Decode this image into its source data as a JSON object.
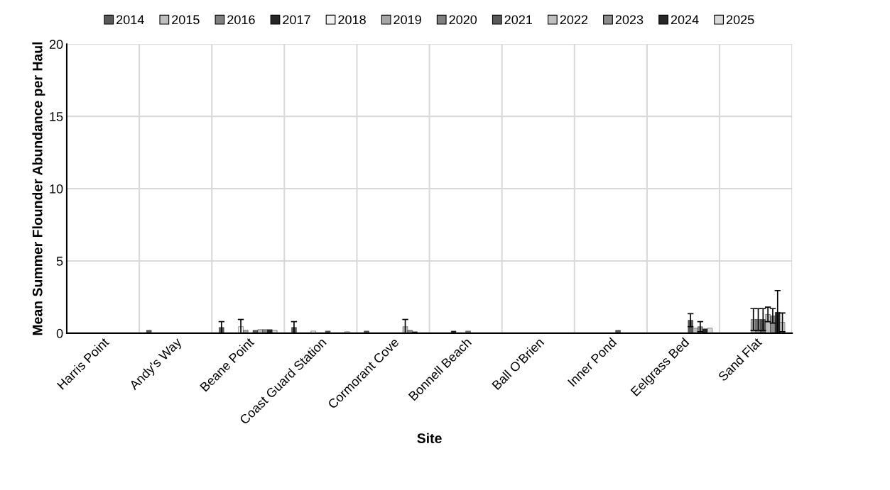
{
  "chart_data": {
    "type": "bar",
    "xlabel": "Site",
    "ylabel": "Mean Summer Flounder Abundance per Haul",
    "categories": [
      "Harris Point",
      "Andy's Way",
      "Beane Point",
      "Coast Guard Station",
      "Cormorant Cove",
      "Bonnell Beach",
      "Ball O'Brien",
      "Inner Pond",
      "Eelgrass Bed",
      "Sand Flat"
    ],
    "ylim": [
      0,
      20
    ],
    "yticks": [
      0,
      5,
      10,
      15,
      20
    ],
    "grid": true,
    "legend": "top",
    "series": [
      {
        "name": "2014",
        "color": "#595959",
        "values": [
          null,
          0.2,
          0.4,
          0.4,
          0.15,
          null,
          null,
          null,
          null,
          null
        ],
        "errors": [
          null,
          null,
          [
            0.0,
            0.8
          ],
          [
            0.0,
            0.8
          ],
          null,
          null,
          null,
          null,
          null,
          null
        ]
      },
      {
        "name": "2015",
        "color": "#bfbfbf",
        "values": [
          null,
          null,
          null,
          null,
          null,
          null,
          null,
          null,
          null,
          null
        ]
      },
      {
        "name": "2016",
        "color": "#7f7f7f",
        "values": [
          null,
          null,
          null,
          null,
          null,
          null,
          null,
          null,
          null,
          null
        ]
      },
      {
        "name": "2017",
        "color": "#262626",
        "values": [
          null,
          null,
          null,
          null,
          null,
          0.15,
          null,
          null,
          null,
          null
        ]
      },
      {
        "name": "2018",
        "color": "#f2f2f2",
        "values": [
          null,
          null,
          0.45,
          0.15,
          null,
          null,
          null,
          null,
          null,
          null
        ],
        "errors": [
          null,
          null,
          [
            0.0,
            0.95
          ],
          null,
          null,
          null,
          null,
          null,
          null,
          null
        ]
      },
      {
        "name": "2019",
        "color": "#a6a6a6",
        "values": [
          null,
          null,
          0.2,
          null,
          null,
          null,
          null,
          null,
          null,
          0.95
        ],
        "errors": [
          null,
          null,
          null,
          null,
          null,
          null,
          null,
          null,
          null,
          [
            0.2,
            1.7
          ]
        ]
      },
      {
        "name": "2020",
        "color": "#808080",
        "values": [
          null,
          null,
          null,
          null,
          null,
          0.15,
          null,
          null,
          null,
          0.95
        ],
        "errors": [
          null,
          null,
          null,
          null,
          null,
          null,
          null,
          null,
          null,
          [
            0.2,
            1.7
          ]
        ]
      },
      {
        "name": "2021",
        "color": "#595959",
        "values": [
          null,
          null,
          0.2,
          0.15,
          null,
          null,
          null,
          0.2,
          0.9,
          0.95
        ],
        "errors": [
          null,
          null,
          null,
          null,
          null,
          null,
          null,
          null,
          [
            0.45,
            1.35
          ],
          [
            0.2,
            1.7
          ]
        ]
      },
      {
        "name": "2022",
        "color": "#bfbfbf",
        "values": [
          null,
          null,
          0.25,
          null,
          0.45,
          null,
          null,
          null,
          0.35,
          1.3
        ],
        "errors": [
          null,
          null,
          null,
          null,
          [
            0.0,
            0.95
          ],
          null,
          null,
          null,
          null,
          [
            0.8,
            1.8
          ]
        ]
      },
      {
        "name": "2023",
        "color": "#8c8c8c",
        "values": [
          null,
          null,
          0.25,
          null,
          0.2,
          null,
          null,
          null,
          0.45,
          1.2
        ],
        "errors": [
          null,
          null,
          null,
          null,
          null,
          null,
          null,
          null,
          [
            0.1,
            0.8
          ],
          [
            0.7,
            1.7
          ]
        ]
      },
      {
        "name": "2024",
        "color": "#262626",
        "values": [
          null,
          null,
          0.25,
          null,
          0.1,
          null,
          null,
          null,
          0.3,
          1.45
        ],
        "errors": [
          null,
          null,
          null,
          null,
          null,
          null,
          null,
          null,
          null,
          [
            0.0,
            2.95
          ]
        ]
      },
      {
        "name": "2025",
        "color": "#d9d9d9",
        "values": [
          null,
          null,
          0.2,
          0.1,
          null,
          null,
          null,
          null,
          0.35,
          0.75
        ],
        "errors": [
          null,
          null,
          null,
          null,
          null,
          null,
          null,
          null,
          null,
          [
            0.1,
            1.4
          ]
        ]
      }
    ]
  }
}
